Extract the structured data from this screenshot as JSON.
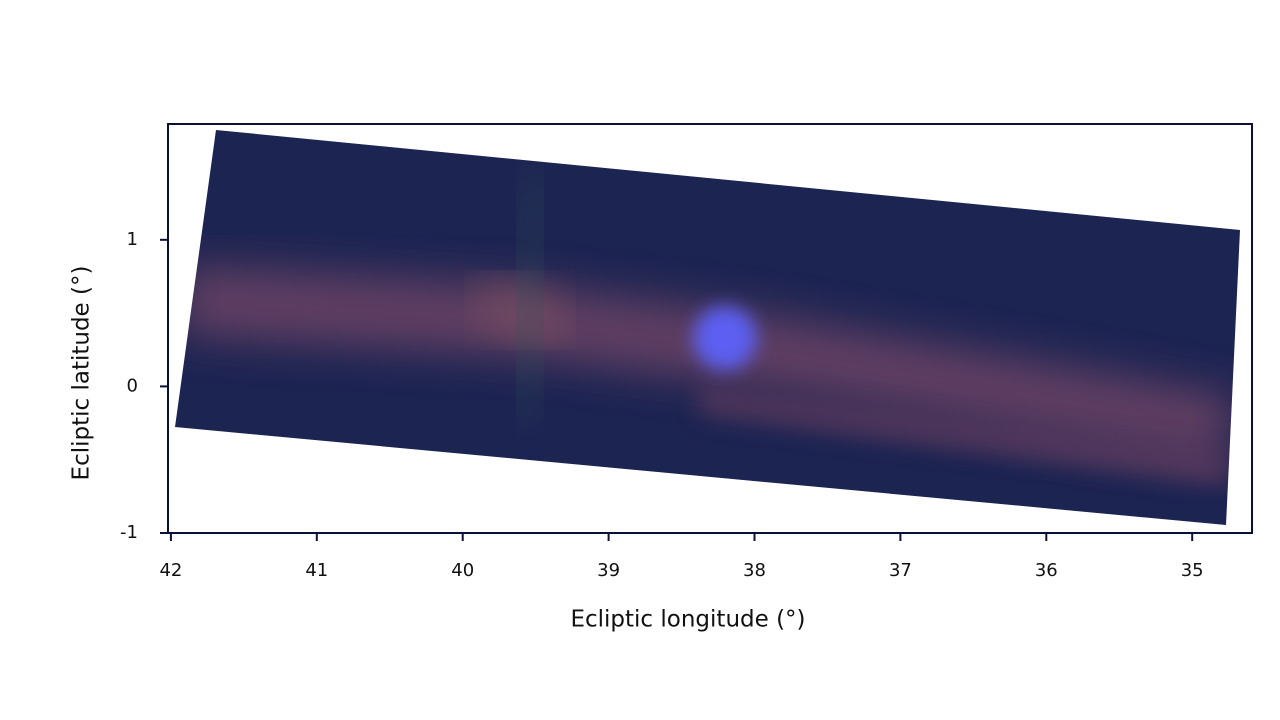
{
  "chart_data": {
    "type": "image",
    "x_label": "Ecliptic longitude (°)",
    "y_label": "Ecliptic latitude (°)",
    "xlim": [
      42.02,
      34.59
    ],
    "xticks": [
      42,
      41,
      40,
      39,
      38,
      37,
      36,
      35
    ],
    "ylim": [
      -1,
      1.79
    ],
    "yticks": [
      -1,
      0,
      1
    ],
    "axis_color": "#0b1038"
  }
}
